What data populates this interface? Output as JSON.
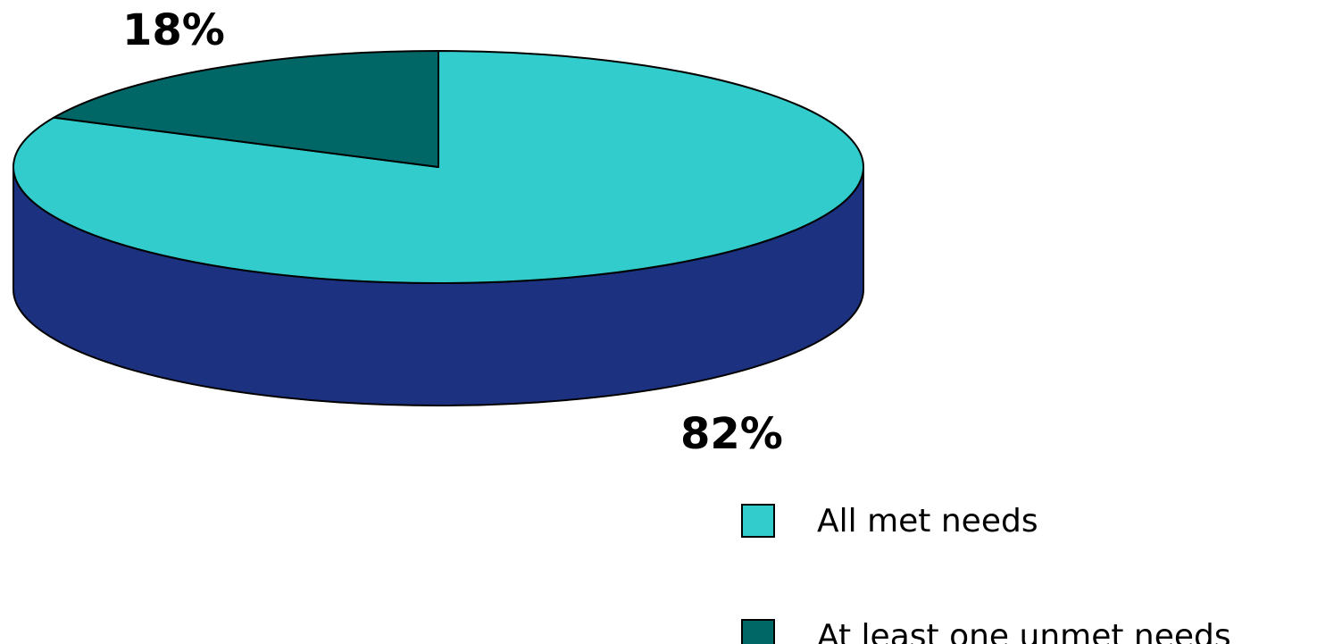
{
  "chart_data": {
    "type": "pie",
    "title": "",
    "slices": [
      {
        "label": "All met needs",
        "value": 82,
        "display": "82%",
        "color": "#33cccc",
        "side_color": "#1c3180"
      },
      {
        "label": "At least one unmet needs",
        "value": 18,
        "display": "18%",
        "color": "#006666",
        "side_color": "#004c4c"
      }
    ],
    "three_d": true,
    "legend_position": "bottom-right"
  }
}
